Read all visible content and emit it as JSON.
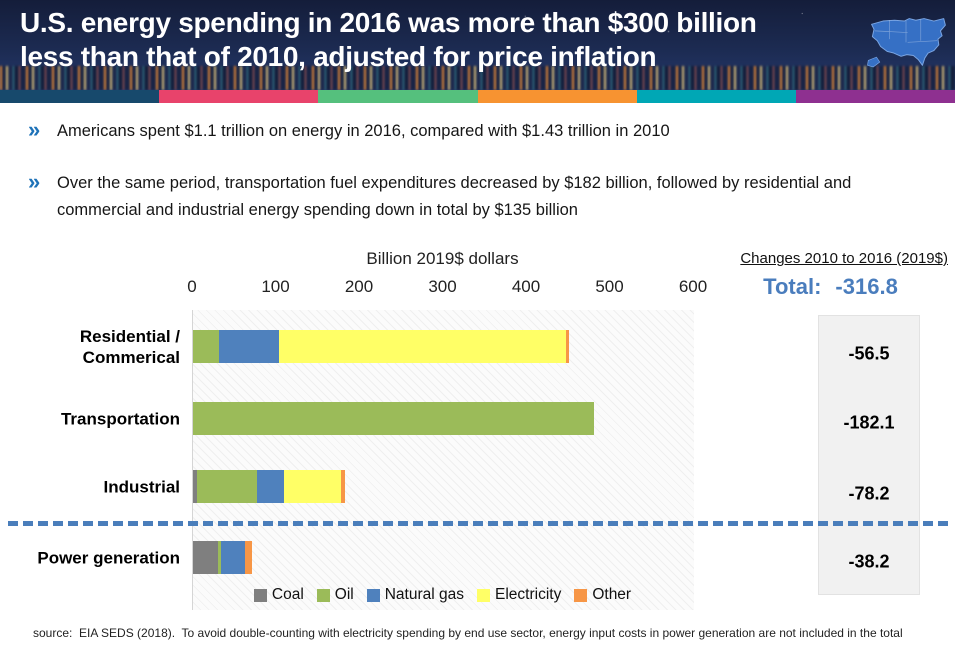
{
  "header": {
    "title_lines": [
      "U.S. energy spending in 2016 was more than $300 billion",
      "less than that of 2010, adjusted for price inflation"
    ],
    "stripe_colors": [
      "#17496c",
      "#e8436b",
      "#55c07d",
      "#f79331",
      "#00a7b5",
      "#8e3090"
    ]
  },
  "icons": {
    "bullet": "»",
    "map": "us-map-icon"
  },
  "bullets": [
    "Americans spent $1.1 trillion on energy in 2016, compared with $1.43 trillion in 2010",
    "Over the same period, transportation fuel expenditures decreased by $182 billion, followed by residential and commercial and industrial energy spending down in total by $135 billion"
  ],
  "chart_data": {
    "type": "bar",
    "orientation": "horizontal",
    "title": "Billion 2019$ dollars",
    "xlim": [
      0,
      600
    ],
    "x_ticks": [
      0,
      100,
      200,
      300,
      400,
      500,
      600
    ],
    "grid": false,
    "plot_background": "light diagonal hatch",
    "legend_position": "bottom",
    "categories": [
      [
        "Residential /",
        "Commerical"
      ],
      [
        "Transportation"
      ],
      [
        "Industrial"
      ],
      [
        "Power generation"
      ]
    ],
    "series": [
      {
        "name": "Coal",
        "color": "#7f7f7f",
        "values": [
          0,
          0,
          5,
          30
        ]
      },
      {
        "name": "Oil",
        "color": "#9bbb59",
        "values": [
          31,
          480,
          72,
          3
        ]
      },
      {
        "name": "Natural gas",
        "color": "#4f81bd",
        "values": [
          72,
          0,
          32,
          29
        ]
      },
      {
        "name": "Electricity",
        "color": "#ffff66",
        "values": [
          344,
          0,
          68,
          0
        ]
      },
      {
        "name": "Other",
        "color": "#f79646",
        "values": [
          3,
          0,
          5,
          9
        ]
      }
    ]
  },
  "changes_panel": {
    "heading": "Changes 2010 to 2016 (2019$)",
    "total_label": "Total:",
    "total_value": "-316.8",
    "values": [
      "-56.5",
      "-182.1",
      "-78.2",
      "-38.2"
    ],
    "accent_color": "#4a7dbd"
  },
  "separator": {
    "style": "dashed",
    "color": "#4a7ebb"
  },
  "source": "source:  EIA SEDS (2018).  To avoid double-counting with electricity spending by end use sector, energy input costs in power generation are not included in the total"
}
